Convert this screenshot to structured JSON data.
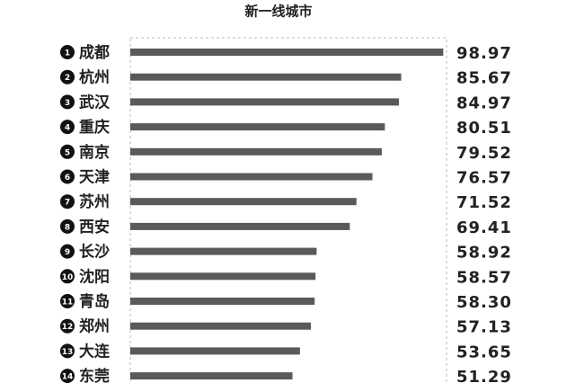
{
  "chart_data": {
    "type": "hbar",
    "title": "新一线城市",
    "ranks": [
      1,
      2,
      3,
      4,
      5,
      6,
      7,
      8,
      9,
      10,
      11,
      12,
      13,
      14
    ],
    "categories": [
      "成都",
      "杭州",
      "武汉",
      "重庆",
      "南京",
      "天津",
      "苏州",
      "西安",
      "长沙",
      "沈阳",
      "青岛",
      "郑州",
      "大连",
      "东莞"
    ],
    "values": [
      98.97,
      85.67,
      84.97,
      80.51,
      79.52,
      76.57,
      71.52,
      69.41,
      58.92,
      58.57,
      58.3,
      57.13,
      53.65,
      51.29
    ],
    "value_labels": [
      "98.97",
      "85.67",
      "84.97",
      "80.51",
      "79.52",
      "76.57",
      "71.52",
      "69.41",
      "58.92",
      "58.57",
      "58.30",
      "57.13",
      "53.65",
      "51.29"
    ],
    "color": "#5a5a5a",
    "xlim": [
      0,
      100
    ]
  }
}
